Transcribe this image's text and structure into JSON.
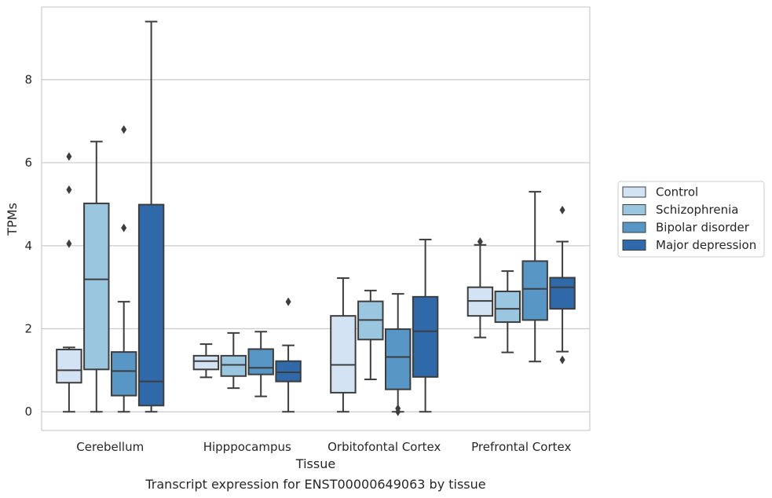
{
  "chart_data": {
    "type": "box",
    "caption": "Transcript expression for ENST00000649063 by tissue",
    "xlabel": "Tissue",
    "ylabel": "TPMs",
    "ylim": [
      -0.45,
      9.75
    ],
    "yticks": [
      0,
      2,
      4,
      6,
      8
    ],
    "grid": "horizontal",
    "legend_position": "right",
    "categories": [
      "Cerebellum",
      "Hipppocampus",
      "Orbitofontal Cortex",
      "Prefrontal Cortex"
    ],
    "series": [
      {
        "name": "Control",
        "color": "#d4e3f3",
        "boxes": [
          {
            "whislo": 0.0,
            "q1": 0.7,
            "med": 1.0,
            "q3": 1.5,
            "whishi": 1.55,
            "fliers": [
              4.05,
              5.35,
              6.15
            ]
          },
          {
            "whislo": 0.83,
            "q1": 1.02,
            "med": 1.22,
            "q3": 1.35,
            "whishi": 1.63,
            "fliers": []
          },
          {
            "whislo": 0.0,
            "q1": 0.46,
            "med": 1.13,
            "q3": 2.31,
            "whishi": 3.22,
            "fliers": []
          },
          {
            "whislo": 1.79,
            "q1": 2.31,
            "med": 2.67,
            "q3": 3.0,
            "whishi": 4.02,
            "fliers": [
              4.1
            ]
          }
        ]
      },
      {
        "name": "Schizophrenia",
        "color": "#9ac6e0",
        "boxes": [
          {
            "whislo": 0.0,
            "q1": 1.02,
            "med": 3.19,
            "q3": 5.02,
            "whishi": 6.51,
            "fliers": []
          },
          {
            "whislo": 0.57,
            "q1": 0.86,
            "med": 1.13,
            "q3": 1.35,
            "whishi": 1.9,
            "fliers": []
          },
          {
            "whislo": 0.78,
            "q1": 1.74,
            "med": 2.21,
            "q3": 2.66,
            "whishi": 2.92,
            "fliers": []
          },
          {
            "whislo": 1.43,
            "q1": 2.16,
            "med": 2.48,
            "q3": 2.9,
            "whishi": 3.39,
            "fliers": []
          }
        ]
      },
      {
        "name": "Bipolar disorder",
        "color": "#5896c6",
        "boxes": [
          {
            "whislo": 0.0,
            "q1": 0.39,
            "med": 0.98,
            "q3": 1.44,
            "whishi": 2.65,
            "fliers": [
              4.43,
              6.8
            ]
          },
          {
            "whislo": 0.37,
            "q1": 0.9,
            "med": 1.06,
            "q3": 1.51,
            "whishi": 1.93,
            "fliers": []
          },
          {
            "whislo": 0.0,
            "q1": 0.54,
            "med": 1.32,
            "q3": 1.99,
            "whishi": 2.84,
            "fliers": [
              0.0,
              0.08
            ]
          },
          {
            "whislo": 1.21,
            "q1": 2.21,
            "med": 2.96,
            "q3": 3.63,
            "whishi": 5.3,
            "fliers": []
          }
        ]
      },
      {
        "name": "Major depression",
        "color": "#2f69a9",
        "boxes": [
          {
            "whislo": 0.0,
            "q1": 0.15,
            "med": 0.73,
            "q3": 4.99,
            "whishi": 9.4,
            "fliers": []
          },
          {
            "whislo": 0.0,
            "q1": 0.73,
            "med": 0.95,
            "q3": 1.22,
            "whishi": 1.6,
            "fliers": [
              2.65
            ]
          },
          {
            "whislo": 0.0,
            "q1": 0.84,
            "med": 1.94,
            "q3": 2.77,
            "whishi": 4.15,
            "fliers": []
          },
          {
            "whislo": 1.45,
            "q1": 2.48,
            "med": 3.0,
            "q3": 3.23,
            "whishi": 4.1,
            "fliers": [
              1.25,
              4.86
            ]
          }
        ]
      }
    ]
  }
}
